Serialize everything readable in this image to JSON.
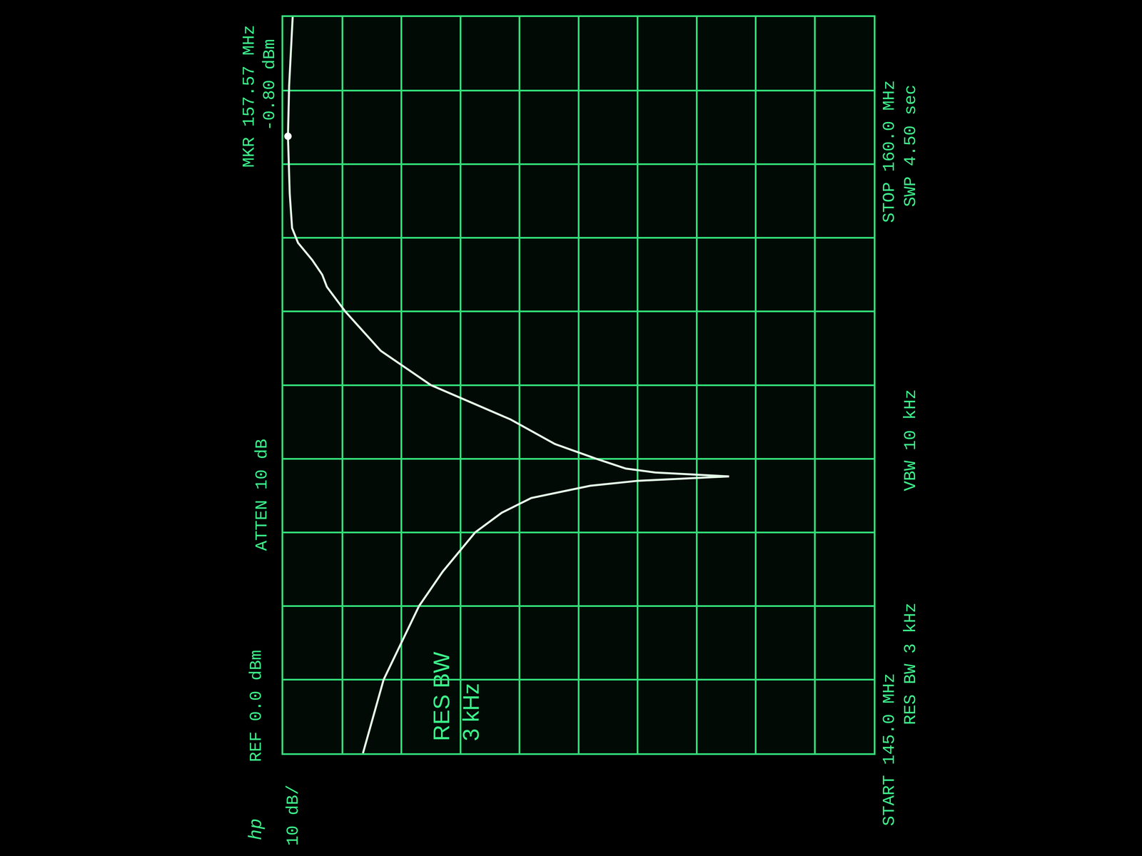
{
  "chart_data": {
    "type": "line",
    "x": [
      145.0,
      146.5,
      148.0,
      148.7,
      149.5,
      149.9,
      150.2,
      150.45,
      150.55,
      150.64,
      150.72,
      150.8,
      151.0,
      151.3,
      151.8,
      152.5,
      153.2,
      154.0,
      154.5,
      154.75,
      155.05,
      155.4,
      155.7,
      156.4,
      157.57,
      158.6,
      160.0
    ],
    "values": [
      -13.5,
      -17,
      -23,
      -27,
      -32.5,
      -37,
      -42,
      -52,
      -60,
      -75.5,
      -63,
      -58,
      -53,
      -46,
      -38.5,
      -25,
      -16.5,
      -10.5,
      -7.4,
      -6.6,
      -4.9,
      -2.5,
      -1.5,
      -1.1,
      -0.8,
      -1.0,
      -1.6
    ],
    "color": "#e4ffe8",
    "xlim": [
      145.0,
      160.0
    ],
    "xticks": [
      145.0,
      146.5,
      148.0,
      149.5,
      151.0,
      152.5,
      154.0,
      155.5,
      157.0,
      158.5,
      160.0
    ],
    "ylim": [
      -100,
      0
    ],
    "yticks": [
      -100,
      -90,
      -80,
      -70,
      -60,
      -50,
      -40,
      -30,
      -20,
      -10,
      0
    ],
    "grid": true,
    "tick_labels": false,
    "marker_point": {
      "x": 157.57,
      "y": -0.8,
      "label": "MKR 157.57 MHz",
      "value_label": "-0.80 dBm"
    },
    "annotations": [
      "hp",
      "REF 0.0 dBm",
      "10 dB/",
      "ATTEN 10 dB",
      "START 145.0 MHz",
      "RES BW 3 kHz",
      "VBW 10 kHz",
      "STOP 160.0 MHz",
      "SWP 4.50 sec"
    ],
    "screen_annotation": [
      "RES BW",
      "3 kHz"
    ]
  }
}
